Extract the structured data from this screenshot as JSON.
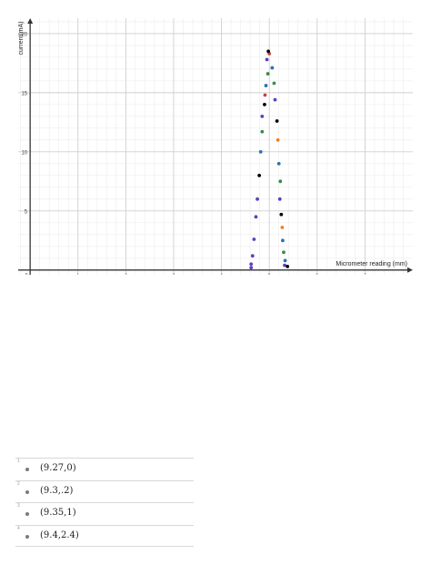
{
  "chart_data": {
    "type": "scatter",
    "title": "",
    "xlabel": "Micrometer reading (mm)",
    "ylabel": "current(mA)",
    "xlim": [
      -0.25,
      8.0
    ],
    "ylim": [
      -0.4,
      21.3
    ],
    "x_ticks": [
      0,
      1,
      2,
      3,
      4,
      5,
      6,
      7
    ],
    "x_tick_labels": [
      "0",
      "1",
      "2",
      "3",
      "4",
      "5",
      "6",
      "7"
    ],
    "y_ticks": [
      5,
      10,
      15,
      20
    ],
    "y_tick_labels": [
      "5",
      "10",
      "15",
      "20"
    ],
    "grid": true,
    "series": [
      {
        "color": "#5e3fbe",
        "points": [
          [
            4.62,
            0.2
          ],
          [
            4.62,
            0.5
          ],
          [
            4.65,
            1.2
          ],
          [
            4.68,
            2.6
          ],
          [
            4.72,
            4.5
          ],
          [
            4.75,
            6.0
          ],
          [
            4.85,
            13.0
          ],
          [
            4.95,
            17.8
          ],
          [
            5.12,
            14.4
          ],
          [
            5.22,
            6.0
          ],
          [
            5.32,
            0.4
          ]
        ]
      },
      {
        "color": "#2d70b3",
        "points": [
          [
            4.82,
            10.0
          ],
          [
            4.93,
            15.6
          ],
          [
            5.06,
            17.1
          ],
          [
            5.2,
            9.0
          ],
          [
            5.28,
            2.5
          ],
          [
            5.33,
            0.8
          ]
        ]
      },
      {
        "color": "#388c46",
        "points": [
          [
            4.85,
            11.7
          ],
          [
            4.97,
            16.6
          ],
          [
            5.1,
            15.8
          ],
          [
            5.23,
            7.5
          ],
          [
            5.3,
            1.5
          ]
        ]
      },
      {
        "color": "#c74440",
        "points": [
          [
            4.91,
            14.8
          ],
          [
            5.0,
            18.3
          ]
        ]
      },
      {
        "color": "#000000",
        "points": [
          [
            4.79,
            8.0
          ],
          [
            4.9,
            14.0
          ],
          [
            4.98,
            18.5
          ],
          [
            5.16,
            12.6
          ],
          [
            5.25,
            4.7
          ],
          [
            5.38,
            0.3
          ]
        ]
      },
      {
        "color": "#fa7e19",
        "points": [
          [
            5.18,
            11.0
          ],
          [
            5.27,
            3.6
          ]
        ]
      }
    ]
  },
  "list": {
    "items": [
      {
        "index": "1",
        "expr": "(9.27,0)"
      },
      {
        "index": "2",
        "expr": "(9.3,.2)"
      },
      {
        "index": "3",
        "expr": "(9.35,1)"
      },
      {
        "index": "4",
        "expr": "(9.4,2.4)"
      }
    ]
  }
}
